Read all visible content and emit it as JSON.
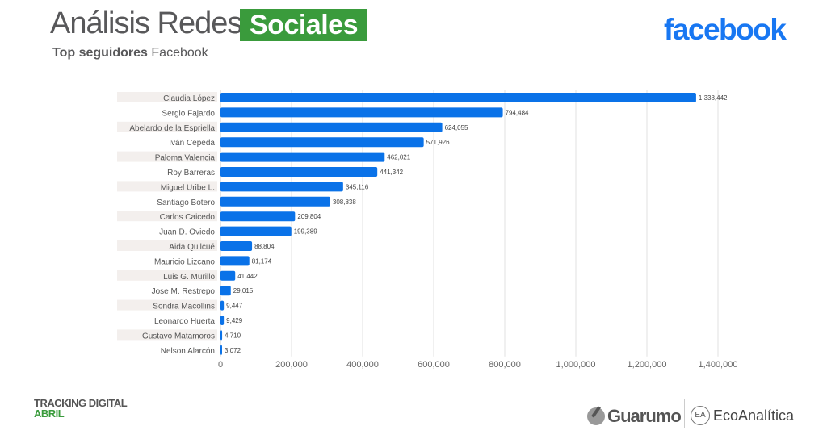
{
  "header": {
    "title": "Análisis Redes",
    "title_highlight": "Sociales",
    "subtitle_bold": "Top seguidores",
    "subtitle_rest": "Facebook",
    "brand_logo": "facebook"
  },
  "footer": {
    "line1": "TRACKING DIGITAL",
    "line2": "ABRIL",
    "logo1": "Guarumo",
    "logo2": "EcoAnalítica"
  },
  "colors": {
    "bar": "#0a72e8",
    "accent_green": "#3a9b3c",
    "facebook": "#1877f2"
  },
  "chart_data": {
    "type": "bar",
    "orientation": "horizontal",
    "title": "",
    "xlabel": "",
    "ylabel": "",
    "xlim": [
      0,
      1400000
    ],
    "x_ticks": [
      "0",
      "200,000",
      "400,000",
      "600,000",
      "800,000",
      "1,000,000",
      "1,200,000",
      "1,400,000"
    ],
    "grid": true,
    "categories": [
      "Claudia López",
      "Sergio Fajardo",
      "Abelardo de la Espriella",
      "Iván Cepeda",
      "Paloma Valencia",
      "Roy Barreras",
      "Miguel Uribe L.",
      "Santiago Botero",
      "Carlos Caicedo",
      "Juan D. Oviedo",
      "Aida Quilcué",
      "Mauricio Lizcano",
      "Luis G. Murillo",
      "Jose M. Restrepo",
      "Sondra Macollins",
      "Leonardo Huerta",
      "Gustavo Matamoros",
      "Nelson Alarcón"
    ],
    "values": [
      1338442,
      794484,
      624055,
      571926,
      462021,
      441342,
      345116,
      308838,
      209804,
      199389,
      88804,
      81174,
      41442,
      29015,
      9447,
      9429,
      4710,
      3072
    ],
    "data_labels": [
      "1,338,442",
      "794,484",
      "624,055",
      "571,926",
      "462,021",
      "441,342",
      "345,116",
      "308,838",
      "209,804",
      "199,389",
      "88,804",
      "81,174",
      "41,442",
      "29,015",
      "9,447",
      "9,429",
      "4,710",
      "3,072"
    ]
  }
}
